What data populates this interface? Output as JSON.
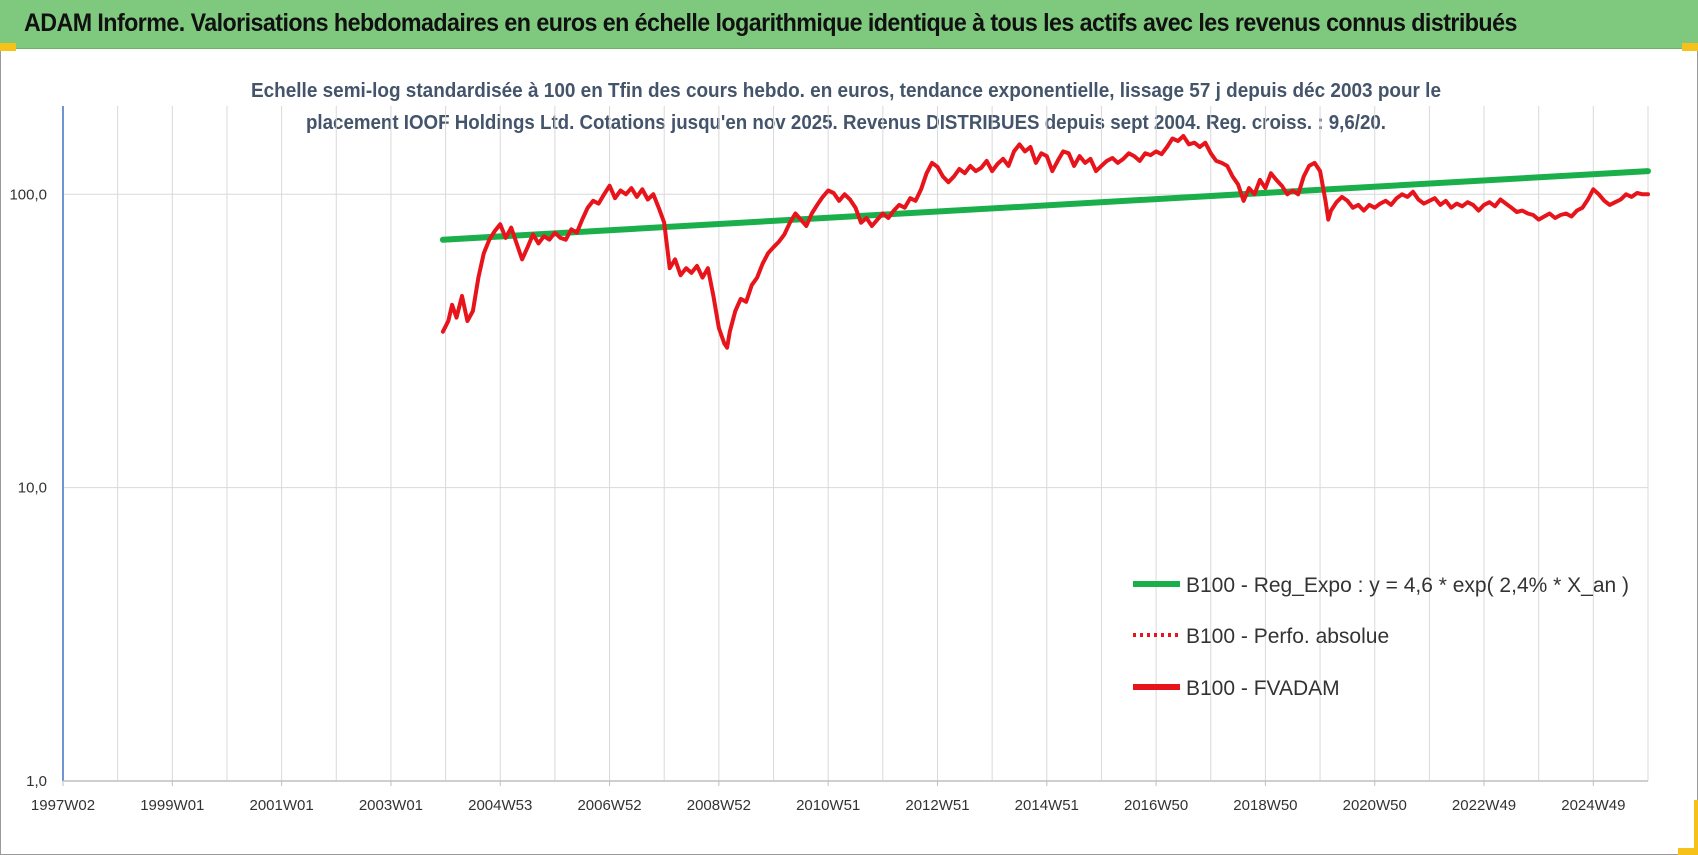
{
  "banner": {
    "title": "ADAM Informe. Valorisations hebdomadaires en euros en échelle logarithmique identique à tous les actifs avec les revenus connus distribués"
  },
  "colors": {
    "banner_bg": "#7fc97f",
    "regression": "#1aaf4b",
    "series": "#e8141b",
    "grid": "#d9d9d9",
    "axis": "#4472c4",
    "subtitle": "#44546a"
  },
  "chart_data": {
    "type": "line",
    "title_lines": [
      "Echelle semi-log standardisée à 100 en Tfin des cours hebdo. en euros, tendance exponentielle, lissage 57 j depuis déc 2003 pour le",
      "placement IOOF Holdings Ltd. Cotations jusqu'en nov 2025. Revenus DISTRIBUES depuis sept 2004. Reg. croiss. : 9,6/20."
    ],
    "y_scale": "log",
    "ylim": [
      1,
      200
    ],
    "y_ticks": [
      {
        "value": 1,
        "label": "1,0"
      },
      {
        "value": 10,
        "label": "10,0"
      },
      {
        "value": 100,
        "label": "100,0"
      }
    ],
    "x_range": [
      1997.0,
      2026.0
    ],
    "x_ticks": [
      {
        "x": 1997.0,
        "label": "1997W02"
      },
      {
        "x": 1999.0,
        "label": "1999W01"
      },
      {
        "x": 2001.0,
        "label": "2001W01"
      },
      {
        "x": 2003.0,
        "label": "2003W01"
      },
      {
        "x": 2005.0,
        "label": "2004W53"
      },
      {
        "x": 2007.0,
        "label": "2006W52"
      },
      {
        "x": 2009.0,
        "label": "2008W52"
      },
      {
        "x": 2011.0,
        "label": "2010W51"
      },
      {
        "x": 2013.0,
        "label": "2012W51"
      },
      {
        "x": 2015.0,
        "label": "2014W51"
      },
      {
        "x": 2017.0,
        "label": "2016W50"
      },
      {
        "x": 2019.0,
        "label": "2018W50"
      },
      {
        "x": 2021.0,
        "label": "2020W50"
      },
      {
        "x": 2023.0,
        "label": "2022W49"
      },
      {
        "x": 2025.0,
        "label": "2024W49"
      }
    ],
    "grid": "vertical and horizontal",
    "legend_position": "lower-right",
    "series": [
      {
        "name": "B100 - Reg_Expo : y = 4,6 * exp( 2,4% *  X_an )",
        "style": "solid-green",
        "points": [
          [
            2003.95,
            70
          ],
          [
            2026.0,
            120
          ]
        ]
      },
      {
        "name": "B100 - Perfo. absolue",
        "style": "dotted-red",
        "points": []
      },
      {
        "name": "B100 - FVADAM",
        "style": "solid-red",
        "points": [
          [
            2003.95,
            34
          ],
          [
            2004.05,
            37
          ],
          [
            2004.12,
            42
          ],
          [
            2004.2,
            38
          ],
          [
            2004.3,
            45
          ],
          [
            2004.4,
            37
          ],
          [
            2004.5,
            40
          ],
          [
            2004.6,
            52
          ],
          [
            2004.7,
            63
          ],
          [
            2004.8,
            70
          ],
          [
            2004.9,
            75
          ],
          [
            2005.0,
            79
          ],
          [
            2005.1,
            71
          ],
          [
            2005.2,
            77
          ],
          [
            2005.3,
            68
          ],
          [
            2005.4,
            60
          ],
          [
            2005.5,
            66
          ],
          [
            2005.6,
            73
          ],
          [
            2005.7,
            68
          ],
          [
            2005.8,
            72
          ],
          [
            2005.9,
            70
          ],
          [
            2006.0,
            74
          ],
          [
            2006.1,
            71
          ],
          [
            2006.2,
            70
          ],
          [
            2006.3,
            76
          ],
          [
            2006.4,
            74
          ],
          [
            2006.5,
            82
          ],
          [
            2006.6,
            90
          ],
          [
            2006.7,
            95
          ],
          [
            2006.8,
            93
          ],
          [
            2006.9,
            100
          ],
          [
            2007.0,
            107
          ],
          [
            2007.1,
            97
          ],
          [
            2007.2,
            103
          ],
          [
            2007.3,
            100
          ],
          [
            2007.4,
            105
          ],
          [
            2007.5,
            98
          ],
          [
            2007.6,
            104
          ],
          [
            2007.7,
            96
          ],
          [
            2007.8,
            100
          ],
          [
            2007.9,
            90
          ],
          [
            2008.0,
            80
          ],
          [
            2008.1,
            56
          ],
          [
            2008.2,
            60
          ],
          [
            2008.3,
            53
          ],
          [
            2008.4,
            56
          ],
          [
            2008.5,
            54
          ],
          [
            2008.6,
            57
          ],
          [
            2008.7,
            52
          ],
          [
            2008.8,
            56
          ],
          [
            2008.9,
            45
          ],
          [
            2009.0,
            35
          ],
          [
            2009.1,
            31
          ],
          [
            2009.15,
            30
          ],
          [
            2009.2,
            34
          ],
          [
            2009.3,
            40
          ],
          [
            2009.4,
            44
          ],
          [
            2009.5,
            43
          ],
          [
            2009.6,
            49
          ],
          [
            2009.7,
            52
          ],
          [
            2009.8,
            58
          ],
          [
            2009.9,
            63
          ],
          [
            2010.0,
            66
          ],
          [
            2010.1,
            69
          ],
          [
            2010.2,
            73
          ],
          [
            2010.3,
            80
          ],
          [
            2010.4,
            86
          ],
          [
            2010.5,
            82
          ],
          [
            2010.6,
            78
          ],
          [
            2010.7,
            86
          ],
          [
            2010.8,
            92
          ],
          [
            2010.9,
            98
          ],
          [
            2011.0,
            103
          ],
          [
            2011.1,
            101
          ],
          [
            2011.2,
            95
          ],
          [
            2011.3,
            100
          ],
          [
            2011.4,
            96
          ],
          [
            2011.5,
            90
          ],
          [
            2011.6,
            80
          ],
          [
            2011.7,
            83
          ],
          [
            2011.8,
            78
          ],
          [
            2011.9,
            82
          ],
          [
            2012.0,
            86
          ],
          [
            2012.1,
            83
          ],
          [
            2012.2,
            88
          ],
          [
            2012.3,
            92
          ],
          [
            2012.4,
            90
          ],
          [
            2012.5,
            97
          ],
          [
            2012.6,
            95
          ],
          [
            2012.7,
            104
          ],
          [
            2012.8,
            118
          ],
          [
            2012.9,
            128
          ],
          [
            2013.0,
            124
          ],
          [
            2013.1,
            115
          ],
          [
            2013.2,
            110
          ],
          [
            2013.3,
            115
          ],
          [
            2013.4,
            122
          ],
          [
            2013.5,
            118
          ],
          [
            2013.6,
            125
          ],
          [
            2013.7,
            120
          ],
          [
            2013.8,
            123
          ],
          [
            2013.9,
            130
          ],
          [
            2014.0,
            120
          ],
          [
            2014.1,
            127
          ],
          [
            2014.2,
            132
          ],
          [
            2014.3,
            125
          ],
          [
            2014.4,
            140
          ],
          [
            2014.5,
            148
          ],
          [
            2014.6,
            140
          ],
          [
            2014.7,
            145
          ],
          [
            2014.8,
            128
          ],
          [
            2014.9,
            138
          ],
          [
            2015.0,
            135
          ],
          [
            2015.1,
            120
          ],
          [
            2015.2,
            130
          ],
          [
            2015.3,
            140
          ],
          [
            2015.4,
            138
          ],
          [
            2015.5,
            125
          ],
          [
            2015.6,
            135
          ],
          [
            2015.7,
            128
          ],
          [
            2015.8,
            132
          ],
          [
            2015.9,
            120
          ],
          [
            2016.0,
            125
          ],
          [
            2016.1,
            130
          ],
          [
            2016.2,
            133
          ],
          [
            2016.3,
            128
          ],
          [
            2016.4,
            132
          ],
          [
            2016.5,
            138
          ],
          [
            2016.6,
            135
          ],
          [
            2016.7,
            130
          ],
          [
            2016.8,
            138
          ],
          [
            2016.9,
            136
          ],
          [
            2017.0,
            140
          ],
          [
            2017.1,
            137
          ],
          [
            2017.2,
            145
          ],
          [
            2017.3,
            155
          ],
          [
            2017.4,
            152
          ],
          [
            2017.5,
            158
          ],
          [
            2017.6,
            148
          ],
          [
            2017.7,
            150
          ],
          [
            2017.8,
            145
          ],
          [
            2017.9,
            150
          ],
          [
            2018.0,
            138
          ],
          [
            2018.1,
            130
          ],
          [
            2018.2,
            128
          ],
          [
            2018.3,
            125
          ],
          [
            2018.4,
            115
          ],
          [
            2018.5,
            108
          ],
          [
            2018.6,
            95
          ],
          [
            2018.7,
            105
          ],
          [
            2018.8,
            100
          ],
          [
            2018.9,
            112
          ],
          [
            2019.0,
            105
          ],
          [
            2019.1,
            118
          ],
          [
            2019.2,
            112
          ],
          [
            2019.3,
            107
          ],
          [
            2019.4,
            100
          ],
          [
            2019.5,
            103
          ],
          [
            2019.6,
            100
          ],
          [
            2019.7,
            115
          ],
          [
            2019.8,
            125
          ],
          [
            2019.9,
            128
          ],
          [
            2020.0,
            120
          ],
          [
            2020.1,
            95
          ],
          [
            2020.15,
            82
          ],
          [
            2020.2,
            88
          ],
          [
            2020.3,
            94
          ],
          [
            2020.4,
            98
          ],
          [
            2020.5,
            95
          ],
          [
            2020.6,
            90
          ],
          [
            2020.7,
            92
          ],
          [
            2020.8,
            88
          ],
          [
            2020.9,
            92
          ],
          [
            2021.0,
            90
          ],
          [
            2021.1,
            93
          ],
          [
            2021.2,
            95
          ],
          [
            2021.3,
            92
          ],
          [
            2021.4,
            97
          ],
          [
            2021.5,
            100
          ],
          [
            2021.6,
            98
          ],
          [
            2021.7,
            102
          ],
          [
            2021.8,
            96
          ],
          [
            2021.9,
            93
          ],
          [
            2022.0,
            95
          ],
          [
            2022.1,
            97
          ],
          [
            2022.2,
            92
          ],
          [
            2022.3,
            95
          ],
          [
            2022.4,
            90
          ],
          [
            2022.5,
            93
          ],
          [
            2022.6,
            91
          ],
          [
            2022.7,
            94
          ],
          [
            2022.8,
            92
          ],
          [
            2022.9,
            88
          ],
          [
            2023.0,
            92
          ],
          [
            2023.1,
            94
          ],
          [
            2023.2,
            91
          ],
          [
            2023.3,
            96
          ],
          [
            2023.4,
            93
          ],
          [
            2023.5,
            90
          ],
          [
            2023.6,
            87
          ],
          [
            2023.7,
            88
          ],
          [
            2023.8,
            86
          ],
          [
            2023.9,
            85
          ],
          [
            2024.0,
            82
          ],
          [
            2024.1,
            84
          ],
          [
            2024.2,
            86
          ],
          [
            2024.3,
            83
          ],
          [
            2024.4,
            85
          ],
          [
            2024.5,
            86
          ],
          [
            2024.6,
            84
          ],
          [
            2024.7,
            88
          ],
          [
            2024.8,
            90
          ],
          [
            2024.9,
            96
          ],
          [
            2025.0,
            104
          ],
          [
            2025.1,
            100
          ],
          [
            2025.2,
            95
          ],
          [
            2025.3,
            92
          ],
          [
            2025.4,
            94
          ],
          [
            2025.5,
            96
          ],
          [
            2025.6,
            100
          ],
          [
            2025.7,
            98
          ],
          [
            2025.8,
            101
          ],
          [
            2025.9,
            100
          ],
          [
            2026.0,
            100
          ]
        ]
      }
    ]
  }
}
